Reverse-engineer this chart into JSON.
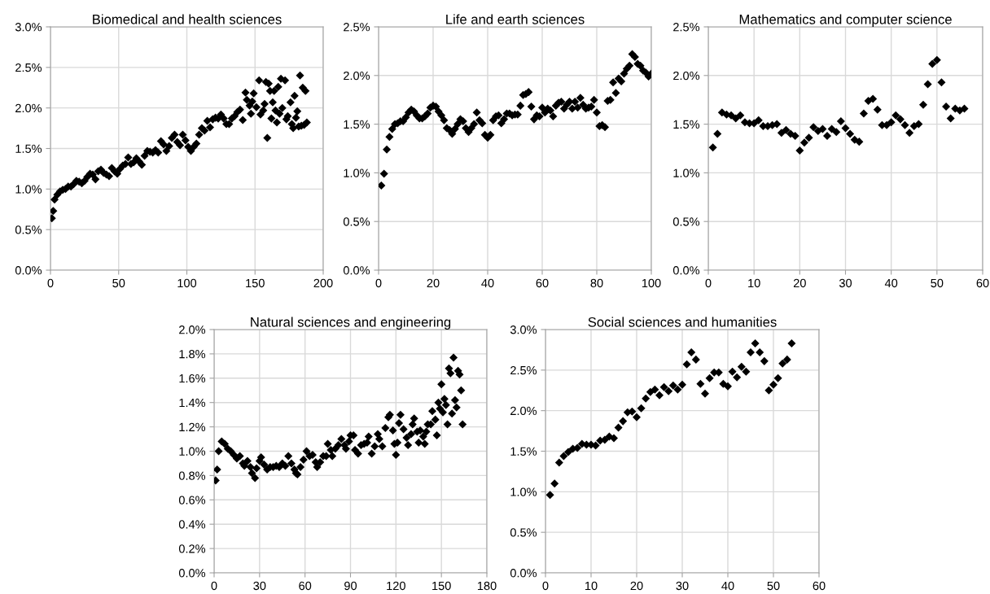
{
  "chart_data": [
    {
      "type": "scatter",
      "title": "Biomedical and health sciences",
      "marker": "diamond",
      "grid": true,
      "xlim": [
        0,
        200
      ],
      "xticks": [
        0,
        50,
        100,
        150,
        200
      ],
      "ylim": [
        0,
        3.0
      ],
      "yticks": [
        {
          "value": 0,
          "label": "0.0%"
        },
        {
          "value": 0.5,
          "label": "0.5%"
        },
        {
          "value": 1.0,
          "label": "1.0%"
        },
        {
          "value": 1.5,
          "label": "1.5%"
        },
        {
          "value": 2.0,
          "label": "2.0%"
        },
        {
          "value": 2.5,
          "label": "2.5%"
        },
        {
          "value": 3.0,
          "label": "3.0%"
        }
      ],
      "series": [
        {
          "color": "#000000",
          "x": [
            1,
            2,
            3,
            5,
            7,
            9,
            11,
            13,
            15,
            17,
            19,
            21,
            23,
            25,
            27,
            29,
            31,
            33,
            35,
            37,
            39,
            41,
            43,
            45,
            47,
            49,
            51,
            53,
            55,
            57,
            59,
            61,
            63,
            65,
            67,
            69,
            71,
            73,
            75,
            77,
            79,
            81,
            83,
            85,
            87,
            89,
            91,
            93,
            95,
            97,
            99,
            101,
            103,
            105,
            107,
            109,
            111,
            113,
            115,
            117,
            119,
            121,
            123,
            125,
            127,
            129,
            131,
            133,
            135,
            137,
            139,
            141,
            143,
            144,
            146,
            147,
            148,
            149,
            151,
            153,
            154,
            156,
            157,
            158,
            159,
            160,
            161,
            162,
            163,
            164,
            165,
            166,
            167,
            168,
            169,
            170,
            172,
            173,
            174,
            176,
            177,
            178,
            179,
            180,
            181,
            182,
            183,
            184,
            185,
            186,
            187,
            188
          ],
          "values": [
            0.64,
            0.73,
            0.87,
            0.93,
            0.97,
            0.99,
            1.0,
            1.03,
            1.03,
            1.06,
            1.1,
            1.09,
            1.07,
            1.1,
            1.15,
            1.19,
            1.18,
            1.12,
            1.22,
            1.24,
            1.2,
            1.18,
            1.16,
            1.26,
            1.22,
            1.19,
            1.25,
            1.29,
            1.31,
            1.39,
            1.31,
            1.33,
            1.38,
            1.34,
            1.3,
            1.41,
            1.47,
            1.46,
            1.45,
            1.48,
            1.45,
            1.59,
            1.55,
            1.47,
            1.53,
            1.63,
            1.67,
            1.58,
            1.54,
            1.67,
            1.6,
            1.52,
            1.47,
            1.52,
            1.56,
            1.67,
            1.75,
            1.72,
            1.84,
            1.76,
            1.86,
            1.88,
            1.87,
            1.92,
            1.87,
            1.8,
            1.8,
            1.87,
            1.9,
            1.95,
            1.98,
            1.85,
            2.19,
            2.1,
            2.03,
            1.93,
            2.08,
            2.18,
            2.01,
            2.34,
            1.92,
            1.97,
            2.05,
            2.32,
            1.63,
            2.3,
            2.21,
            1.87,
            2.07,
            2.21,
            1.97,
            1.82,
            2.26,
            1.93,
            2.36,
            2.0,
            2.34,
            1.86,
            1.9,
            2.07,
            1.8,
            1.75,
            2.15,
            1.88,
            1.96,
            1.77,
            2.4,
            1.78,
            2.25,
            1.79,
            2.21,
            1.82
          ]
        }
      ]
    },
    {
      "type": "scatter",
      "title": "Life and earth sciences",
      "marker": "diamond",
      "grid": true,
      "xlim": [
        0,
        100
      ],
      "xticks": [
        0,
        20,
        40,
        60,
        80,
        100
      ],
      "ylim": [
        0,
        2.5
      ],
      "yticks": [
        {
          "value": 0,
          "label": "0.0%"
        },
        {
          "value": 0.5,
          "label": "0.5%"
        },
        {
          "value": 1.0,
          "label": "1.0%"
        },
        {
          "value": 1.5,
          "label": "1.5%"
        },
        {
          "value": 2.0,
          "label": "2.0%"
        },
        {
          "value": 2.5,
          "label": "2.5%"
        }
      ],
      "series": [
        {
          "color": "#000000",
          "x": [
            1,
            2,
            3,
            4,
            5,
            6,
            7,
            8,
            9,
            10,
            11,
            12,
            13,
            14,
            15,
            16,
            17,
            18,
            19,
            20,
            21,
            22,
            23,
            24,
            25,
            26,
            27,
            28,
            29,
            30,
            31,
            32,
            33,
            34,
            35,
            36,
            37,
            38,
            39,
            40,
            41,
            42,
            43,
            44,
            45,
            46,
            47,
            48,
            49,
            50,
            51,
            52,
            53,
            54,
            55,
            56,
            57,
            58,
            59,
            60,
            61,
            62,
            63,
            64,
            65,
            66,
            67,
            68,
            69,
            70,
            71,
            72,
            73,
            74,
            75,
            76,
            77,
            78,
            79,
            80,
            81,
            82,
            83,
            84,
            85,
            86,
            87,
            88,
            89,
            90,
            91,
            92,
            93,
            94,
            95,
            96,
            97,
            98,
            99,
            100
          ],
          "values": [
            0.87,
            0.99,
            1.24,
            1.37,
            1.45,
            1.5,
            1.51,
            1.53,
            1.53,
            1.57,
            1.62,
            1.65,
            1.63,
            1.59,
            1.56,
            1.56,
            1.58,
            1.61,
            1.67,
            1.69,
            1.68,
            1.63,
            1.59,
            1.54,
            1.46,
            1.44,
            1.4,
            1.45,
            1.5,
            1.55,
            1.53,
            1.46,
            1.42,
            1.46,
            1.5,
            1.62,
            1.54,
            1.51,
            1.39,
            1.36,
            1.39,
            1.54,
            1.58,
            1.59,
            1.51,
            1.55,
            1.61,
            1.61,
            1.59,
            1.6,
            1.6,
            1.69,
            1.8,
            1.81,
            1.83,
            1.68,
            1.55,
            1.59,
            1.58,
            1.67,
            1.62,
            1.66,
            1.64,
            1.58,
            1.69,
            1.72,
            1.73,
            1.66,
            1.7,
            1.73,
            1.66,
            1.73,
            1.67,
            1.77,
            1.7,
            1.66,
            1.67,
            1.68,
            1.75,
            1.62,
            1.48,
            1.49,
            1.47,
            1.74,
            1.75,
            1.93,
            1.82,
            1.97,
            1.94,
            2.02,
            2.07,
            2.1,
            2.22,
            2.19,
            2.12,
            2.1,
            2.05,
            2.03,
            1.99,
            2.02
          ]
        }
      ]
    },
    {
      "type": "scatter",
      "title": "Mathematics and computer science",
      "marker": "diamond",
      "grid": true,
      "xlim": [
        0,
        60
      ],
      "xticks": [
        0,
        10,
        20,
        30,
        40,
        50,
        60
      ],
      "ylim": [
        0,
        2.5
      ],
      "yticks": [
        {
          "value": 0,
          "label": "0.0%"
        },
        {
          "value": 0.5,
          "label": "0.5%"
        },
        {
          "value": 1.0,
          "label": "1.0%"
        },
        {
          "value": 1.5,
          "label": "1.5%"
        },
        {
          "value": 2.0,
          "label": "2.0%"
        },
        {
          "value": 2.5,
          "label": "2.5%"
        }
      ],
      "series": [
        {
          "color": "#000000",
          "x": [
            1,
            2,
            3,
            4,
            5,
            6,
            7,
            8,
            9,
            10,
            11,
            12,
            13,
            14,
            15,
            16,
            17,
            18,
            19,
            20,
            21,
            22,
            23,
            24,
            25,
            26,
            27,
            28,
            29,
            30,
            31,
            32,
            33,
            34,
            35,
            36,
            37,
            38,
            39,
            40,
            41,
            42,
            43,
            44,
            45,
            46,
            47,
            48,
            49,
            50,
            51,
            52,
            53,
            54,
            55,
            56
          ],
          "values": [
            1.26,
            1.4,
            1.62,
            1.6,
            1.59,
            1.56,
            1.59,
            1.52,
            1.51,
            1.51,
            1.54,
            1.48,
            1.48,
            1.49,
            1.5,
            1.41,
            1.44,
            1.4,
            1.38,
            1.23,
            1.31,
            1.36,
            1.47,
            1.43,
            1.45,
            1.38,
            1.45,
            1.42,
            1.53,
            1.46,
            1.4,
            1.34,
            1.32,
            1.61,
            1.74,
            1.76,
            1.65,
            1.49,
            1.49,
            1.52,
            1.59,
            1.55,
            1.49,
            1.41,
            1.48,
            1.5,
            1.7,
            1.91,
            2.12,
            2.16,
            1.93,
            1.68,
            1.56,
            1.66,
            1.64,
            1.66
          ]
        }
      ]
    },
    {
      "type": "scatter",
      "title": "Natural sciences and engineering",
      "marker": "diamond",
      "grid": true,
      "xlim": [
        0,
        180
      ],
      "xticks": [
        0,
        30,
        60,
        90,
        120,
        150,
        180
      ],
      "ylim": [
        0,
        2.0
      ],
      "yticks": [
        {
          "value": 0,
          "label": "0.0%"
        },
        {
          "value": 0.2,
          "label": "0.2%"
        },
        {
          "value": 0.4,
          "label": "0.4%"
        },
        {
          "value": 0.6,
          "label": "0.6%"
        },
        {
          "value": 0.8,
          "label": "0.8%"
        },
        {
          "value": 1.0,
          "label": "1.0%"
        },
        {
          "value": 1.2,
          "label": "1.2%"
        },
        {
          "value": 1.4,
          "label": "1.4%"
        },
        {
          "value": 1.6,
          "label": "1.6%"
        },
        {
          "value": 1.8,
          "label": "1.8%"
        },
        {
          "value": 2.0,
          "label": "2.0%"
        }
      ],
      "series": [
        {
          "color": "#000000",
          "x": [
            1,
            2,
            3,
            5,
            7,
            9,
            11,
            13,
            15,
            17,
            19,
            20,
            22,
            24,
            25,
            27,
            28,
            30,
            31,
            33,
            35,
            37,
            39,
            41,
            43,
            45,
            47,
            49,
            51,
            53,
            54,
            55,
            57,
            59,
            61,
            63,
            65,
            67,
            68,
            70,
            72,
            74,
            75,
            77,
            78,
            80,
            82,
            84,
            86,
            87,
            89,
            90,
            92,
            93,
            95,
            97,
            99,
            101,
            102,
            104,
            106,
            108,
            109,
            111,
            113,
            115,
            116,
            118,
            119,
            120,
            121,
            122,
            123,
            125,
            127,
            128,
            130,
            131,
            132,
            134,
            135,
            136,
            138,
            139,
            140,
            141,
            143,
            144,
            146,
            147,
            148,
            149,
            150,
            151,
            152,
            153,
            154,
            155,
            156,
            157,
            158,
            159,
            160,
            161,
            162,
            163,
            164
          ],
          "values": [
            0.76,
            0.85,
            1.0,
            1.08,
            1.06,
            1.02,
            1.0,
            0.97,
            0.94,
            0.96,
            0.9,
            0.88,
            0.92,
            0.87,
            0.82,
            0.78,
            0.86,
            0.92,
            0.95,
            0.89,
            0.85,
            0.87,
            0.87,
            0.88,
            0.87,
            0.9,
            0.88,
            0.96,
            0.9,
            0.85,
            0.82,
            0.81,
            0.87,
            0.93,
            1.0,
            0.96,
            0.97,
            0.91,
            0.87,
            0.91,
            0.96,
            0.96,
            1.06,
            1.01,
            0.96,
            1.02,
            1.05,
            1.1,
            1.05,
            1.02,
            1.08,
            1.13,
            1.13,
            1.01,
            0.98,
            1.05,
            1.06,
            1.07,
            1.12,
            0.98,
            1.04,
            1.14,
            1.1,
            1.04,
            1.19,
            1.28,
            1.3,
            1.17,
            1.06,
            0.97,
            1.07,
            1.23,
            1.3,
            1.18,
            1.11,
            1.05,
            1.14,
            1.22,
            1.27,
            1.16,
            1.07,
            1.17,
            1.12,
            1.06,
            1.16,
            1.22,
            1.22,
            1.33,
            1.26,
            1.13,
            1.4,
            1.35,
            1.55,
            1.32,
            1.43,
            1.38,
            1.22,
            1.68,
            1.64,
            1.31,
            1.77,
            1.42,
            1.36,
            1.66,
            1.63,
            1.5,
            1.22
          ]
        }
      ]
    },
    {
      "type": "scatter",
      "title": "Social sciences and humanities",
      "marker": "diamond",
      "grid": true,
      "xlim": [
        0,
        60
      ],
      "xticks": [
        0,
        10,
        20,
        30,
        40,
        50,
        60
      ],
      "ylim": [
        0,
        3.0
      ],
      "yticks": [
        {
          "value": 0,
          "label": "0.0%"
        },
        {
          "value": 0.5,
          "label": "0.5%"
        },
        {
          "value": 1.0,
          "label": "1.0%"
        },
        {
          "value": 1.5,
          "label": "1.5%"
        },
        {
          "value": 2.0,
          "label": "2.0%"
        },
        {
          "value": 2.5,
          "label": "2.5%"
        },
        {
          "value": 3.0,
          "label": "3.0%"
        }
      ],
      "series": [
        {
          "color": "#000000",
          "x": [
            1,
            2,
            3,
            4,
            5,
            6,
            7,
            8,
            9,
            10,
            11,
            12,
            13,
            14,
            15,
            16,
            17,
            18,
            19,
            20,
            21,
            22,
            23,
            24,
            25,
            26,
            27,
            28,
            29,
            30,
            31,
            32,
            33,
            34,
            35,
            36,
            37,
            38,
            39,
            40,
            41,
            42,
            43,
            44,
            45,
            46,
            47,
            48,
            49,
            50,
            51,
            52,
            53,
            54
          ],
          "values": [
            0.96,
            1.1,
            1.36,
            1.44,
            1.49,
            1.53,
            1.54,
            1.59,
            1.58,
            1.58,
            1.57,
            1.63,
            1.64,
            1.68,
            1.66,
            1.79,
            1.87,
            1.98,
            1.99,
            1.92,
            2.03,
            2.15,
            2.23,
            2.26,
            2.19,
            2.29,
            2.24,
            2.31,
            2.26,
            2.32,
            2.57,
            2.72,
            2.63,
            2.33,
            2.21,
            2.4,
            2.47,
            2.47,
            2.33,
            2.3,
            2.48,
            2.41,
            2.54,
            2.48,
            2.72,
            2.83,
            2.72,
            2.61,
            2.25,
            2.32,
            2.4,
            2.58,
            2.63,
            2.83
          ]
        }
      ]
    }
  ]
}
